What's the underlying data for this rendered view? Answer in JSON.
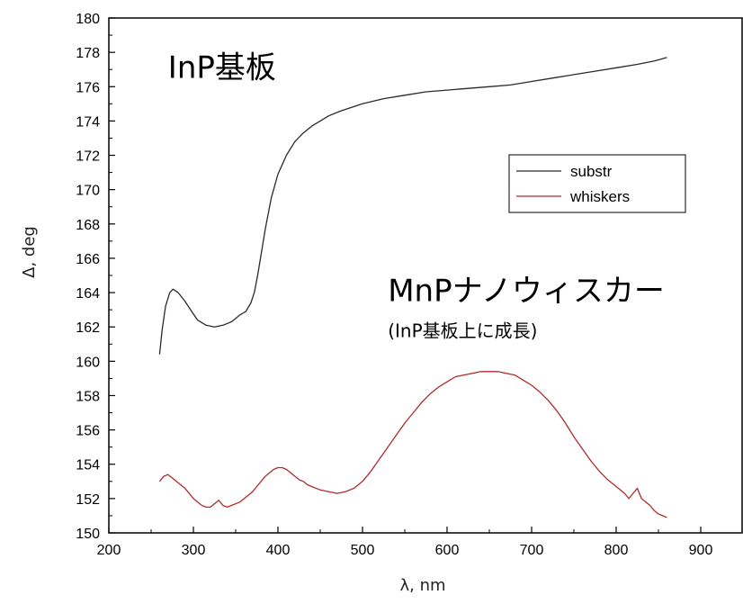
{
  "chart_data": {
    "type": "line",
    "xlabel": "λ, nm",
    "ylabel": "Δ, deg",
    "xlim": [
      200,
      950
    ],
    "ylim": [
      150,
      180
    ],
    "x_ticks": [
      200,
      300,
      400,
      500,
      600,
      700,
      800,
      900
    ],
    "y_ticks": [
      150,
      152,
      154,
      156,
      158,
      160,
      162,
      164,
      166,
      168,
      170,
      172,
      174,
      176,
      178,
      180
    ],
    "grid": false,
    "legend_position": "right",
    "annotations": [
      {
        "text": "InP基板",
        "x": 270,
        "y": 176.5,
        "size": "large"
      },
      {
        "text": "MnPナノウィスカー",
        "x": 530,
        "y": 163.5,
        "size": "large"
      },
      {
        "text": "(InP基板上に成長)",
        "x": 530,
        "y": 161.4,
        "size": "small"
      }
    ],
    "series": [
      {
        "name": "substr",
        "color": "#2a2a2a",
        "points": [
          [
            260,
            160.4
          ],
          [
            263,
            161.8
          ],
          [
            267,
            163.2
          ],
          [
            272,
            164.0
          ],
          [
            276,
            164.2
          ],
          [
            282,
            164.0
          ],
          [
            290,
            163.5
          ],
          [
            298,
            162.9
          ],
          [
            305,
            162.4
          ],
          [
            315,
            162.1
          ],
          [
            325,
            162.0
          ],
          [
            335,
            162.1
          ],
          [
            345,
            162.3
          ],
          [
            350,
            162.5
          ],
          [
            355,
            162.7
          ],
          [
            362,
            162.9
          ],
          [
            368,
            163.4
          ],
          [
            372,
            164.0
          ],
          [
            376,
            165.0
          ],
          [
            380,
            166.2
          ],
          [
            385,
            167.7
          ],
          [
            392,
            169.5
          ],
          [
            400,
            170.9
          ],
          [
            410,
            172.0
          ],
          [
            420,
            172.8
          ],
          [
            430,
            173.3
          ],
          [
            440,
            173.7
          ],
          [
            450,
            174.0
          ],
          [
            460,
            174.3
          ],
          [
            475,
            174.6
          ],
          [
            500,
            175.0
          ],
          [
            525,
            175.3
          ],
          [
            550,
            175.5
          ],
          [
            575,
            175.7
          ],
          [
            600,
            175.8
          ],
          [
            625,
            175.9
          ],
          [
            650,
            176.0
          ],
          [
            675,
            176.1
          ],
          [
            700,
            176.3
          ],
          [
            725,
            176.5
          ],
          [
            750,
            176.7
          ],
          [
            775,
            176.9
          ],
          [
            800,
            177.1
          ],
          [
            825,
            177.3
          ],
          [
            845,
            177.5
          ],
          [
            860,
            177.7
          ]
        ]
      },
      {
        "name": "whiskers",
        "color": "#b22a2a",
        "points": [
          [
            260,
            153.0
          ],
          [
            265,
            153.3
          ],
          [
            270,
            153.4
          ],
          [
            275,
            153.2
          ],
          [
            280,
            153.0
          ],
          [
            285,
            152.8
          ],
          [
            290,
            152.6
          ],
          [
            295,
            152.3
          ],
          [
            300,
            152.0
          ],
          [
            305,
            151.8
          ],
          [
            310,
            151.6
          ],
          [
            315,
            151.5
          ],
          [
            320,
            151.5
          ],
          [
            325,
            151.7
          ],
          [
            330,
            151.9
          ],
          [
            335,
            151.6
          ],
          [
            340,
            151.5
          ],
          [
            345,
            151.6
          ],
          [
            350,
            151.7
          ],
          [
            355,
            151.8
          ],
          [
            360,
            152.0
          ],
          [
            365,
            152.2
          ],
          [
            370,
            152.4
          ],
          [
            375,
            152.7
          ],
          [
            380,
            153.0
          ],
          [
            385,
            153.3
          ],
          [
            390,
            153.5
          ],
          [
            395,
            153.7
          ],
          [
            400,
            153.8
          ],
          [
            405,
            153.8
          ],
          [
            410,
            153.7
          ],
          [
            415,
            153.5
          ],
          [
            420,
            153.3
          ],
          [
            425,
            153.1
          ],
          [
            430,
            153.0
          ],
          [
            435,
            152.8
          ],
          [
            440,
            152.7
          ],
          [
            450,
            152.5
          ],
          [
            460,
            152.4
          ],
          [
            470,
            152.3
          ],
          [
            480,
            152.4
          ],
          [
            490,
            152.6
          ],
          [
            500,
            153.0
          ],
          [
            510,
            153.6
          ],
          [
            520,
            154.3
          ],
          [
            530,
            155.0
          ],
          [
            540,
            155.7
          ],
          [
            550,
            156.4
          ],
          [
            560,
            157.0
          ],
          [
            570,
            157.6
          ],
          [
            580,
            158.1
          ],
          [
            590,
            158.5
          ],
          [
            600,
            158.8
          ],
          [
            610,
            159.1
          ],
          [
            620,
            159.2
          ],
          [
            630,
            159.3
          ],
          [
            640,
            159.4
          ],
          [
            650,
            159.4
          ],
          [
            660,
            159.4
          ],
          [
            670,
            159.3
          ],
          [
            680,
            159.2
          ],
          [
            690,
            158.9
          ],
          [
            700,
            158.6
          ],
          [
            710,
            158.2
          ],
          [
            720,
            157.7
          ],
          [
            730,
            157.1
          ],
          [
            740,
            156.4
          ],
          [
            750,
            155.6
          ],
          [
            760,
            154.9
          ],
          [
            770,
            154.2
          ],
          [
            780,
            153.6
          ],
          [
            790,
            153.1
          ],
          [
            800,
            152.7
          ],
          [
            810,
            152.3
          ],
          [
            815,
            152.0
          ],
          [
            820,
            152.3
          ],
          [
            825,
            152.6
          ],
          [
            830,
            152.0
          ],
          [
            835,
            151.8
          ],
          [
            840,
            151.6
          ],
          [
            845,
            151.3
          ],
          [
            850,
            151.1
          ],
          [
            855,
            151.0
          ],
          [
            860,
            150.9
          ]
        ]
      }
    ]
  }
}
